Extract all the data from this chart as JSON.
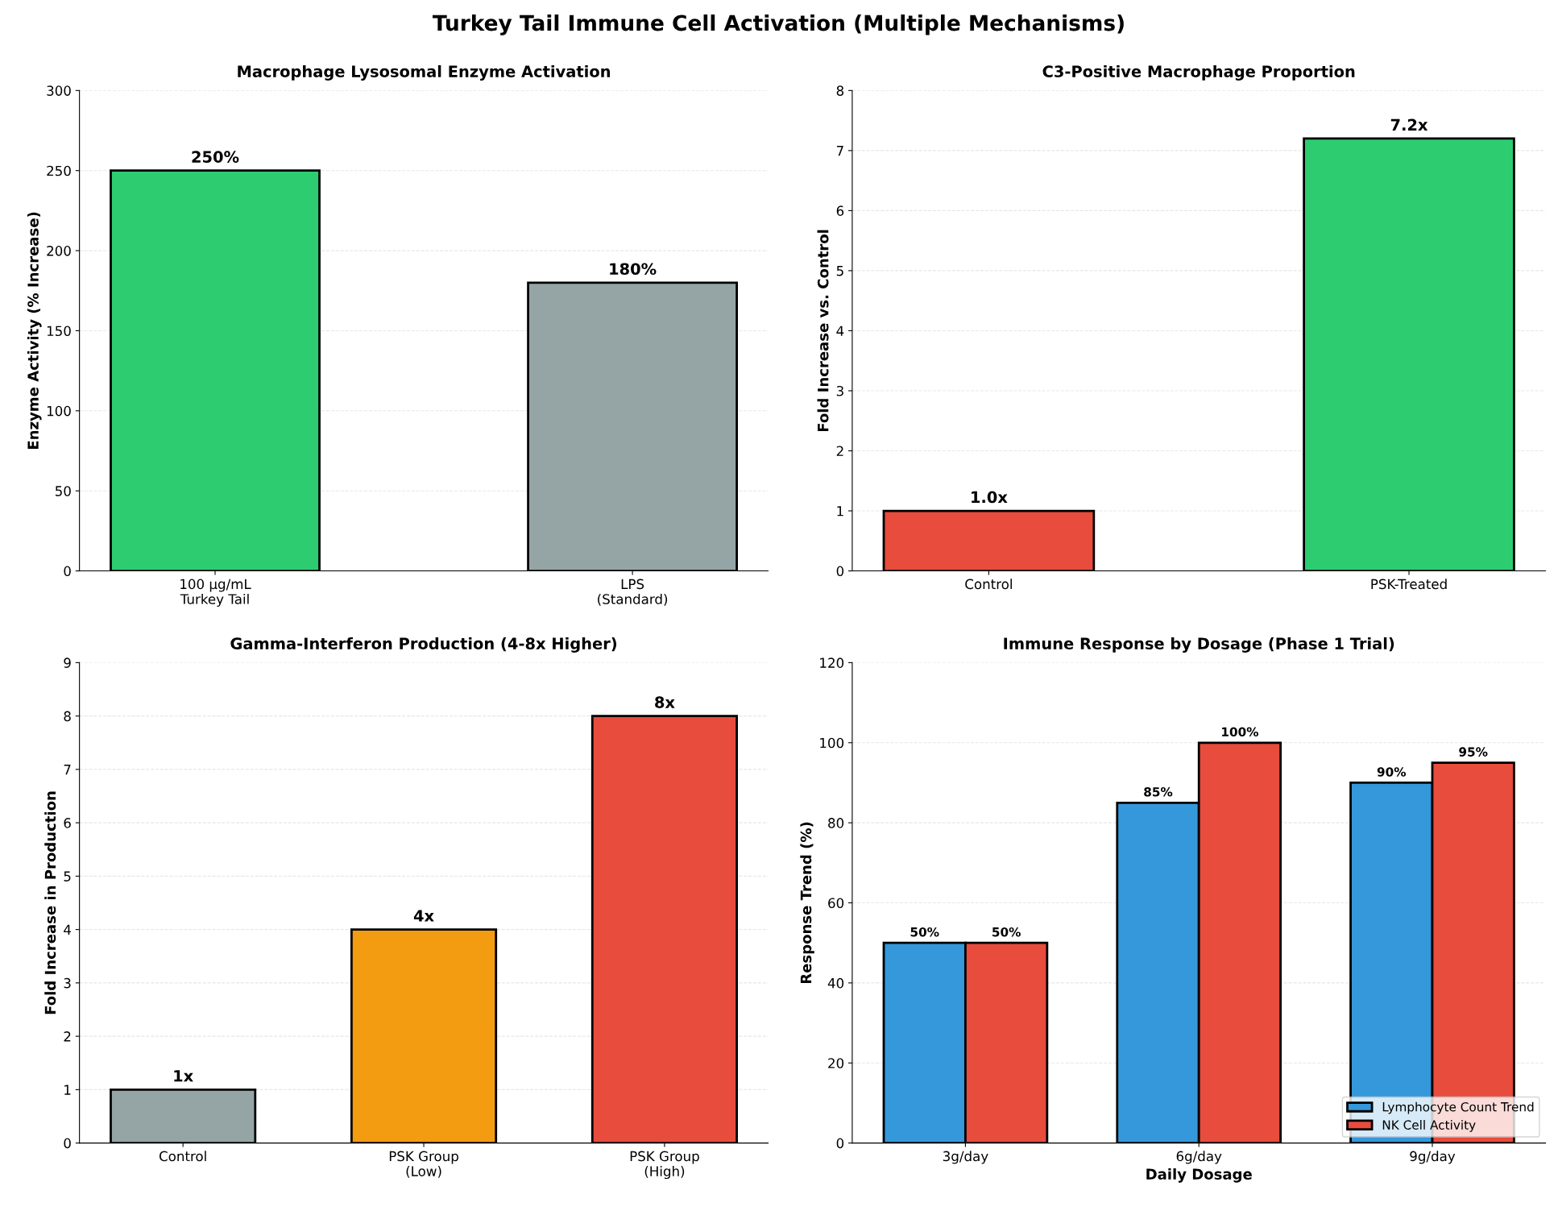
{
  "chart_data": [
    {
      "type": "bar",
      "title": "Macrophage Lysosomal Enzyme Activation",
      "ylabel": "Enzyme Activity (% Increase)",
      "categories": [
        "100 μg/mL\nTurkey Tail",
        "LPS\n(Standard)"
      ],
      "values": [
        250,
        180
      ],
      "colors": [
        "#2ecc71",
        "#95a5a6"
      ],
      "value_labels": [
        "250%",
        "180%"
      ],
      "ylim": [
        0,
        300
      ],
      "yticks": [
        0,
        50,
        100,
        150,
        200,
        250,
        300
      ],
      "grid": "y",
      "annotations": [
        "Turkey Tail Immune Cell Activation (Multiple Mechanisms)"
      ]
    },
    {
      "type": "bar",
      "title": "C3-Positive Macrophage Proportion",
      "ylabel": "Fold Increase vs. Control",
      "categories": [
        "Control",
        "PSK-Treated"
      ],
      "values": [
        1.0,
        7.2
      ],
      "colors": [
        "#e74c3c",
        "#2ecc71"
      ],
      "value_labels": [
        "1.0x",
        "7.2x"
      ],
      "ylim": [
        0,
        8
      ],
      "yticks": [
        0,
        1,
        2,
        3,
        4,
        5,
        6,
        7,
        8
      ],
      "grid": "y"
    },
    {
      "type": "bar",
      "title": "Gamma-Interferon Production (4-8x Higher)",
      "ylabel": "Fold Increase in Production",
      "categories": [
        "Control",
        "PSK Group\n(Low)",
        "PSK Group\n(High)"
      ],
      "values": [
        1,
        4,
        8
      ],
      "colors": [
        "#95a5a6",
        "#f39c12",
        "#e74c3c"
      ],
      "value_labels": [
        "1x",
        "4x",
        "8x"
      ],
      "ylim": [
        0,
        9
      ],
      "yticks": [
        0,
        1,
        2,
        3,
        4,
        5,
        6,
        7,
        8,
        9
      ],
      "grid": "y"
    },
    {
      "type": "bar",
      "title": "Immune Response by Dosage (Phase 1 Trial)",
      "xlabel": "Daily Dosage",
      "ylabel": "Response Trend (%)",
      "categories": [
        "3g/day",
        "6g/day",
        "9g/day"
      ],
      "series": [
        {
          "name": "Lymphocyte Count Trend",
          "color": "#3498db",
          "values": [
            50,
            85,
            90
          ],
          "value_labels": [
            "50%",
            "85%",
            "90%"
          ]
        },
        {
          "name": "NK Cell Activity",
          "color": "#e74c3c",
          "values": [
            50,
            100,
            95
          ],
          "value_labels": [
            "50%",
            "100%",
            "95%"
          ]
        }
      ],
      "ylim": [
        0,
        120
      ],
      "yticks": [
        0,
        20,
        40,
        60,
        80,
        100,
        120
      ],
      "grid": "y",
      "legend": "bottom right"
    }
  ]
}
